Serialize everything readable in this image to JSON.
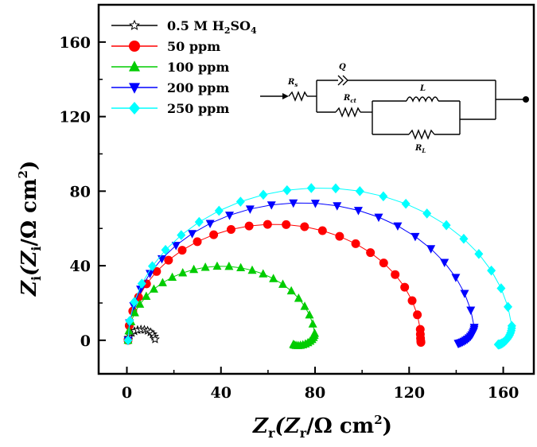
{
  "chart_data": {
    "type": "scatter",
    "title": "",
    "xlabel_main": "Z",
    "xlabel_sub": "r",
    "xlabel_paren_open": "(Z",
    "xlabel_paren_sub": "r",
    "xlabel_unit": "/Ω cm",
    "xlabel_sup": "2",
    "xlabel_close": ")",
    "ylabel_main": "Z",
    "ylabel_sub": "i",
    "ylabel_paren_open": "(Z",
    "ylabel_paren_sub": "i",
    "ylabel_unit": "/Ω cm",
    "ylabel_sup": "2",
    "ylabel_close": ")",
    "xlim": [
      -12,
      173
    ],
    "ylim": [
      -18,
      180
    ],
    "xticks": [
      0,
      40,
      80,
      120,
      160
    ],
    "yticks": [
      0,
      40,
      80,
      120,
      160
    ],
    "xtick_labels": [
      "0",
      "40",
      "80",
      "120",
      "160"
    ],
    "ytick_labels": [
      "0",
      "40",
      "80",
      "120",
      "160"
    ],
    "grid": false,
    "legend_position": "top-left",
    "series": [
      {
        "name": "0.5 M H2SO4",
        "name_parts": [
          "0.5 M H",
          "2",
          "SO",
          "4"
        ],
        "marker": "star",
        "color": "#000000",
        "rs": 0.5,
        "rct": 12,
        "xlow": 12,
        "ylow": -0.5,
        "points_arc": 12,
        "points_ind": 0
      },
      {
        "name": "50 ppm",
        "marker": "circle",
        "color": "#ff0000",
        "rs": 0.5,
        "rct": 125,
        "xlow": 125,
        "ylow": -2,
        "points_arc": 24,
        "points_ind": 4
      },
      {
        "name": "100 ppm",
        "marker": "triangle-up",
        "color": "#00cc00",
        "rs": 0.5,
        "rct": 80,
        "xlow": 71,
        "ylow": -4,
        "points_arc": 24,
        "points_ind": 12
      },
      {
        "name": "200 ppm",
        "marker": "triangle-down",
        "color": "#0000ff",
        "rs": 0.5,
        "rct": 148,
        "xlow": 141,
        "ylow": -3,
        "points_arc": 24,
        "points_ind": 14
      },
      {
        "name": "250 ppm",
        "marker": "diamond",
        "color": "#00ffff",
        "rs": 0.5,
        "rct": 164,
        "xlow": 158,
        "ylow": -4,
        "points_arc": 24,
        "points_ind": 14
      }
    ],
    "circuit": {
      "rs_label": "R",
      "rs_sub": "s",
      "q_label": "Q",
      "rct_label": "R",
      "rct_sub": "ct",
      "l_label": "L",
      "rl_label": "R",
      "rl_sub": "L"
    }
  }
}
